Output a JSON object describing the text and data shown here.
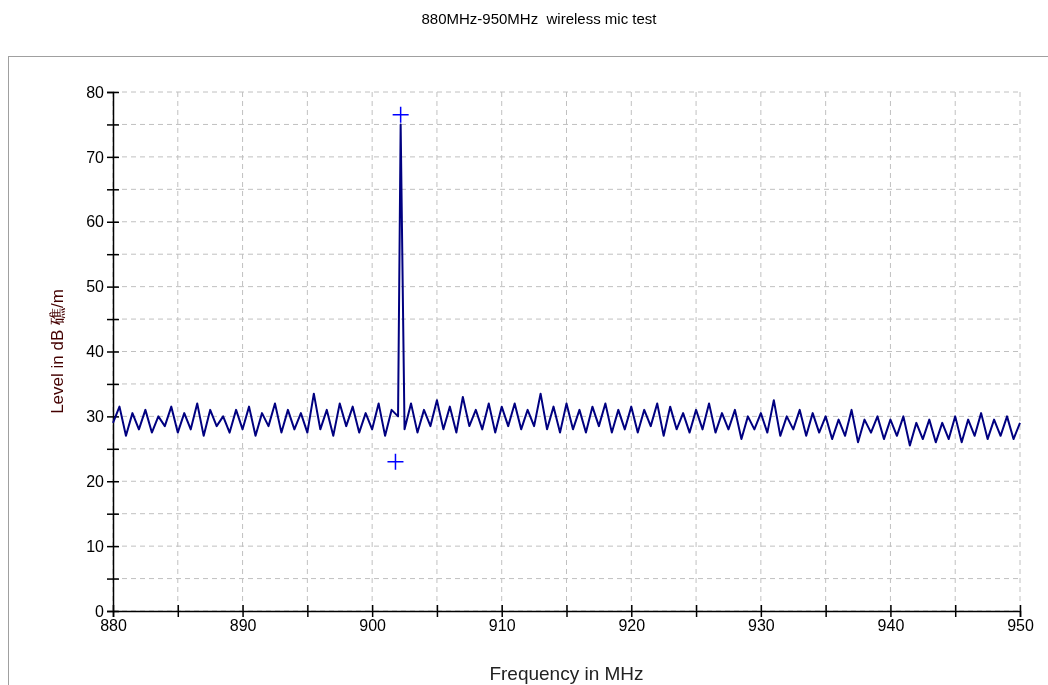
{
  "chart_data": {
    "type": "line",
    "title": "880MHz-950MHz  wireless mic test",
    "xlabel": "Frequency in MHz",
    "ylabel": "Level in dB 礁/m",
    "xlim": [
      880,
      950
    ],
    "ylim": [
      0,
      80
    ],
    "xticks": [
      880,
      {
        "value": 885,
        "label": null
      },
      890,
      {
        "value": 895,
        "label": null
      },
      900,
      {
        "value": 905,
        "label": null
      },
      910,
      {
        "value": 915,
        "label": null
      },
      920,
      {
        "value": 925,
        "label": null
      },
      930,
      {
        "value": 935,
        "label": null
      },
      940,
      {
        "value": 945,
        "label": null
      },
      950
    ],
    "yticks": [
      0,
      {
        "value": 5,
        "label": null
      },
      10,
      {
        "value": 15,
        "label": null
      },
      20,
      {
        "value": 25,
        "label": null
      },
      30,
      {
        "value": 35,
        "label": null
      },
      40,
      {
        "value": 45,
        "label": null
      },
      50,
      {
        "value": 55,
        "label": null
      },
      60,
      {
        "value": 65,
        "label": null
      },
      70,
      {
        "value": 75,
        "label": null
      },
      80
    ],
    "grid": true,
    "line_style": "solid",
    "series": [
      {
        "color": "#000080",
        "marker": "none",
        "x": [
          880,
          880.5,
          881,
          881.5,
          882,
          882.5,
          883,
          883.5,
          884,
          884.5,
          885,
          885.5,
          886,
          886.5,
          887,
          887.5,
          888,
          888.5,
          889,
          889.5,
          890,
          890.5,
          891,
          891.5,
          892,
          892.5,
          893,
          893.5,
          894,
          894.5,
          895,
          895.5,
          896,
          896.5,
          897,
          897.5,
          898,
          898.5,
          899,
          899.5,
          900,
          900.5,
          901,
          901.5,
          902,
          902.2,
          902.5,
          903,
          903.5,
          904,
          904.5,
          905,
          905.5,
          906,
          906.5,
          907,
          907.5,
          908,
          908.5,
          909,
          909.5,
          910,
          910.5,
          911,
          911.5,
          912,
          912.5,
          913,
          913.5,
          914,
          914.5,
          915,
          915.5,
          916,
          916.5,
          917,
          917.5,
          918,
          918.5,
          919,
          919.5,
          920,
          920.5,
          921,
          921.5,
          922,
          922.5,
          923,
          923.5,
          924,
          924.5,
          925,
          925.5,
          926,
          926.5,
          927,
          927.5,
          928,
          928.5,
          929,
          929.5,
          930,
          930.5,
          931,
          931.5,
          932,
          932.5,
          933,
          933.5,
          934,
          934.5,
          935,
          935.5,
          936,
          936.5,
          937,
          937.5,
          938,
          938.5,
          939,
          939.5,
          940,
          940.5,
          941,
          941.5,
          942,
          942.5,
          943,
          943.5,
          944,
          944.5,
          945,
          945.5,
          946,
          946.5,
          947,
          947.5,
          948,
          948.5,
          949,
          949.5,
          950
        ],
        "values": [
          29,
          31.5,
          27,
          30.5,
          28,
          31,
          27.5,
          30,
          28.5,
          31.5,
          27.5,
          30.5,
          28,
          32,
          27,
          31,
          28.5,
          30,
          27.5,
          31,
          28,
          31.5,
          27,
          30.5,
          28.5,
          32,
          27.5,
          31,
          28,
          30.5,
          27.5,
          33.5,
          28,
          31,
          27,
          32,
          28.5,
          31.5,
          27.5,
          30.5,
          28,
          32,
          27,
          31,
          30,
          75,
          28,
          32,
          27.5,
          31,
          28.5,
          32.5,
          28,
          31.5,
          27.5,
          33,
          28.5,
          31,
          28,
          32,
          27.5,
          31.5,
          28.5,
          32,
          28,
          31,
          28.5,
          33.5,
          28,
          31.5,
          27.5,
          32,
          28,
          31,
          27.5,
          31.5,
          28.5,
          32,
          27.5,
          31,
          28,
          31.5,
          27.5,
          31,
          28.5,
          32,
          27,
          31.5,
          28,
          30.5,
          27.5,
          31,
          28,
          32,
          27.5,
          30.5,
          28,
          31,
          26.5,
          30,
          28,
          30.5,
          27.5,
          32.5,
          27,
          30,
          28,
          31,
          27,
          30.5,
          27.5,
          30,
          26.5,
          29.5,
          27,
          31,
          26,
          29.5,
          27.5,
          30,
          26.5,
          29.5,
          27,
          30,
          25.5,
          29,
          26.5,
          29.5,
          26,
          29,
          26.5,
          30,
          26,
          29.5,
          27,
          30.5,
          26.5,
          29.5,
          27,
          30,
          26.5,
          29
        ]
      },
      {
        "type": "scatter",
        "color": "#0000ff",
        "marker": "cross",
        "x": [
          902.2,
          901.8
        ],
        "values": [
          76.5,
          23
        ]
      }
    ]
  }
}
